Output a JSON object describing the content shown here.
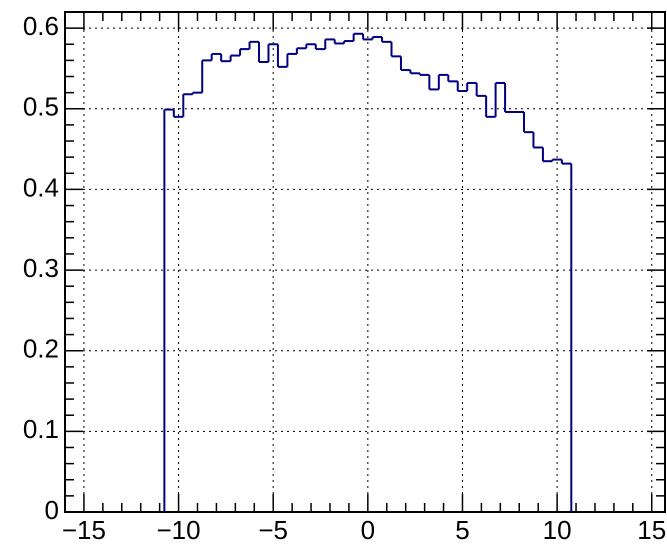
{
  "chart_data": {
    "type": "histogram",
    "bins": [
      -10.75,
      -10.25,
      -9.75,
      -9.25,
      -8.75,
      -8.25,
      -7.75,
      -7.25,
      -6.75,
      -6.25,
      -5.75,
      -5.25,
      -4.75,
      -4.25,
      -3.75,
      -3.25,
      -2.75,
      -2.25,
      -1.75,
      -1.25,
      -0.75,
      -0.25,
      0.25,
      0.75,
      1.25,
      1.75,
      2.25,
      2.75,
      3.25,
      3.75,
      4.25,
      4.75,
      5.25,
      5.75,
      6.25,
      6.75,
      7.25,
      7.75,
      8.25,
      8.75,
      9.25,
      9.75,
      10.25,
      10.75
    ],
    "values": [
      0.499,
      0.49,
      0.518,
      0.52,
      0.56,
      0.568,
      0.559,
      0.566,
      0.574,
      0.583,
      0.558,
      0.58,
      0.552,
      0.568,
      0.575,
      0.58,
      0.574,
      0.586,
      0.581,
      0.584,
      0.593,
      0.586,
      0.589,
      0.583,
      0.565,
      0.548,
      0.544,
      0.542,
      0.524,
      0.542,
      0.534,
      0.522,
      0.532,
      0.516,
      0.49,
      0.532,
      0.496,
      0.496,
      0.471,
      0.452,
      0.435,
      0.437,
      0.432
    ],
    "color": "#000080",
    "xlim": [
      -16,
      15.7
    ],
    "ylim": [
      0,
      0.62
    ],
    "xticks": [
      {
        "value": -15,
        "label": "−15"
      },
      {
        "value": -10,
        "label": "−10"
      },
      {
        "value": -5,
        "label": "−5"
      },
      0,
      5,
      10,
      15
    ],
    "yticks": [
      0,
      0.1,
      0.2,
      0.3,
      0.4,
      0.5,
      0.6
    ],
    "grid": true
  }
}
